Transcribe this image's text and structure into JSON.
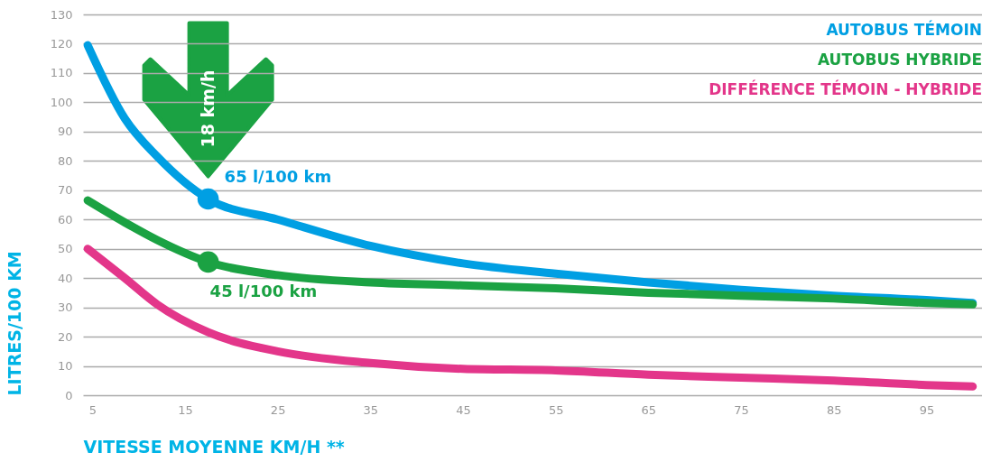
{
  "chart_data": {
    "type": "line",
    "xlabel": "VITESSE MOYENNE KM/H **",
    "ylabel": "LITRES/100 KM",
    "xlim": [
      4,
      101
    ],
    "xticks": [
      5,
      15,
      25,
      35,
      45,
      55,
      65,
      75,
      85,
      95
    ],
    "ylim": [
      0,
      130
    ],
    "yticks": [
      0,
      10,
      20,
      30,
      40,
      50,
      60,
      70,
      80,
      90,
      100,
      110,
      120,
      130
    ],
    "grid": "y",
    "legend": "top right",
    "x": [
      4.5,
      8.5,
      12,
      17.5,
      25,
      35,
      45,
      55,
      65,
      75,
      85,
      95,
      100
    ],
    "series": [
      {
        "name": "AUTOBUS TÉMOIN",
        "color": "#009fe3",
        "values": [
          119.5,
          94.5,
          81.5,
          67,
          60,
          51,
          45,
          41.5,
          38.5,
          36,
          34,
          32.5,
          31.5
        ]
      },
      {
        "name": "AUTOBUS HYBRIDE",
        "color": "#1ba243",
        "values": [
          66.5,
          59,
          53,
          45.5,
          41,
          38.5,
          37.5,
          36.5,
          35,
          34,
          33,
          31.5,
          31
        ]
      },
      {
        "name": "DIFFÉRENCE TÉMOIN - HYBRIDE",
        "color": "#e3368a",
        "values": [
          50,
          40,
          31,
          21.5,
          15,
          11,
          9,
          8.5,
          7,
          6,
          5,
          3.5,
          3
        ]
      }
    ],
    "annotations": [
      {
        "text": "65 l/100 km",
        "x": 17.5,
        "y": 67
      },
      {
        "text": "45 l/100 km",
        "x": 17.5,
        "y": 45.5
      },
      "18 km/h"
    ]
  }
}
